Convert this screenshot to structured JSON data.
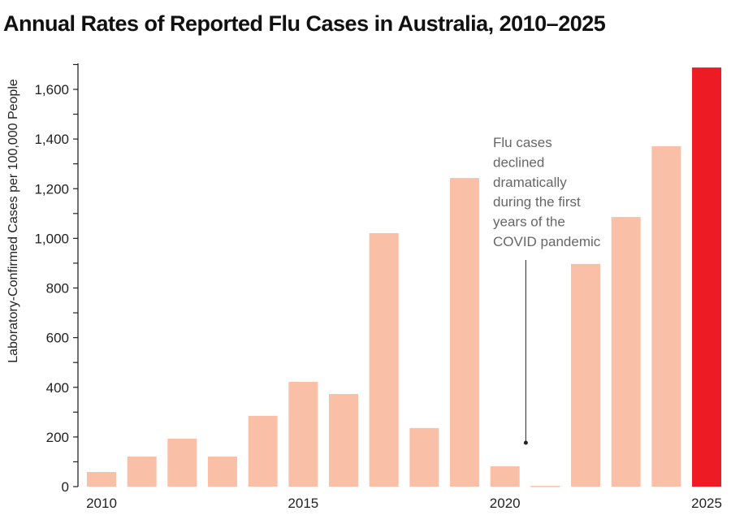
{
  "chart_data": {
    "type": "bar",
    "title": "Annual Rates of Reported Flu Cases in Australia, 2010–2025",
    "xlabel": "",
    "ylabel": "Laboratory-Confirmed Cases per 100,000 People",
    "categories": [
      "2010",
      "2011",
      "2012",
      "2013",
      "2014",
      "2015",
      "2016",
      "2017",
      "2018",
      "2019",
      "2020",
      "2021",
      "2022",
      "2023",
      "2024",
      "2025"
    ],
    "values": [
      59,
      121,
      193,
      121,
      285,
      422,
      373,
      1021,
      236,
      1243,
      82,
      3,
      897,
      1086,
      1371,
      1688
    ],
    "ylim": [
      0,
      1700
    ],
    "yticks": [
      0,
      200,
      400,
      600,
      800,
      1000,
      1200,
      1400,
      1600
    ],
    "ytick_labels": [
      "0",
      "200",
      "400",
      "600",
      "800",
      "1,000",
      "1,200",
      "1,400",
      "1,600"
    ],
    "xtick_labels": [
      "2010",
      "2015",
      "2020",
      "2025"
    ],
    "grid": false,
    "colors": {
      "default": "#f9bfa7",
      "highlight": "#ed1c24"
    },
    "highlight_category": "2025",
    "annotation": {
      "lines": [
        "Flu cases",
        "declined",
        "dramatically",
        "during the first",
        "years of the",
        "COVID pandemic"
      ],
      "points_to": "2021"
    }
  }
}
